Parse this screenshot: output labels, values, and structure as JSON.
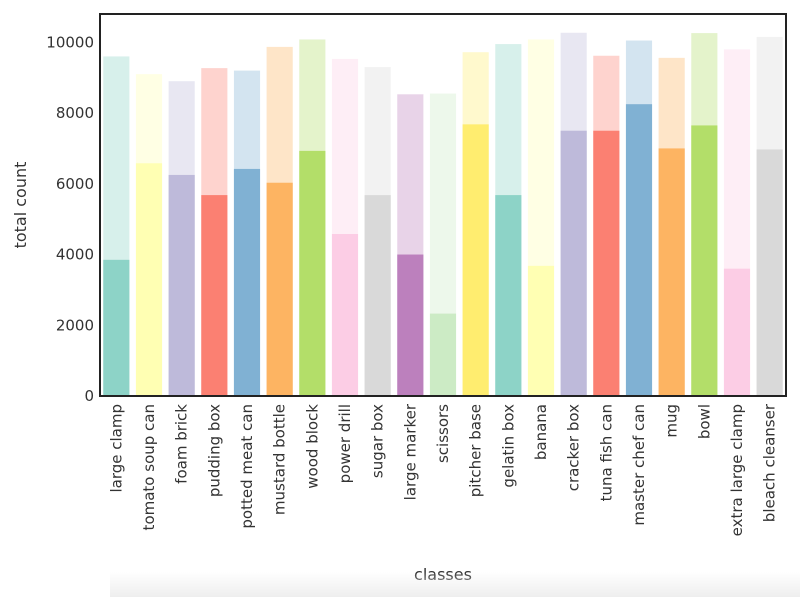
{
  "chart_data": {
    "type": "bar",
    "xlabel": "classes",
    "ylabel": "total count",
    "ylim": [
      0,
      10800
    ],
    "yticks": [
      "0",
      "2000",
      "4000",
      "6000",
      "8000",
      "10000"
    ],
    "ytick_values": [
      0,
      2000,
      4000,
      6000,
      8000,
      10000
    ],
    "grid": false,
    "legend": "none",
    "categories": [
      "large clamp",
      "tomato soup can",
      "foam brick",
      "pudding box",
      "potted meat can",
      "mustard bottle",
      "wood block",
      "power drill",
      "sugar box",
      "large marker",
      "scissors",
      "pitcher base",
      "gelatin box",
      "banana",
      "cracker box",
      "tuna fish can",
      "master chef can",
      "mug",
      "bowl",
      "extra large clamp",
      "bleach cleanser"
    ],
    "series": [
      {
        "values": [
          9600,
          9100,
          8900,
          9270,
          9200,
          9870,
          10080,
          9530,
          9300,
          8530,
          8550,
          9720,
          9950,
          10080,
          10270,
          9620,
          10050,
          9560,
          10260,
          9800,
          10150
        ]
      },
      {
        "values": [
          3850,
          6580,
          6250,
          5680,
          6420,
          6030,
          6930,
          4580,
          5680,
          4000,
          2330,
          7680,
          5680,
          3680,
          7500,
          7500,
          8250,
          7000,
          7650,
          3600,
          6970
        ]
      }
    ],
    "colors": [
      "#8dd3c7",
      "#ffffb3",
      "#bebada",
      "#fb8072",
      "#80b1d3",
      "#fdb462",
      "#b3de69",
      "#fccde5",
      "#d9d9d9",
      "#bc80bd",
      "#ccebc5",
      "#ffed6f",
      "#8dd3c7",
      "#ffffb3",
      "#bebada",
      "#fb8072",
      "#80b1d3",
      "#fdb462",
      "#b3de69",
      "#fccde5",
      "#d9d9d9"
    ]
  }
}
